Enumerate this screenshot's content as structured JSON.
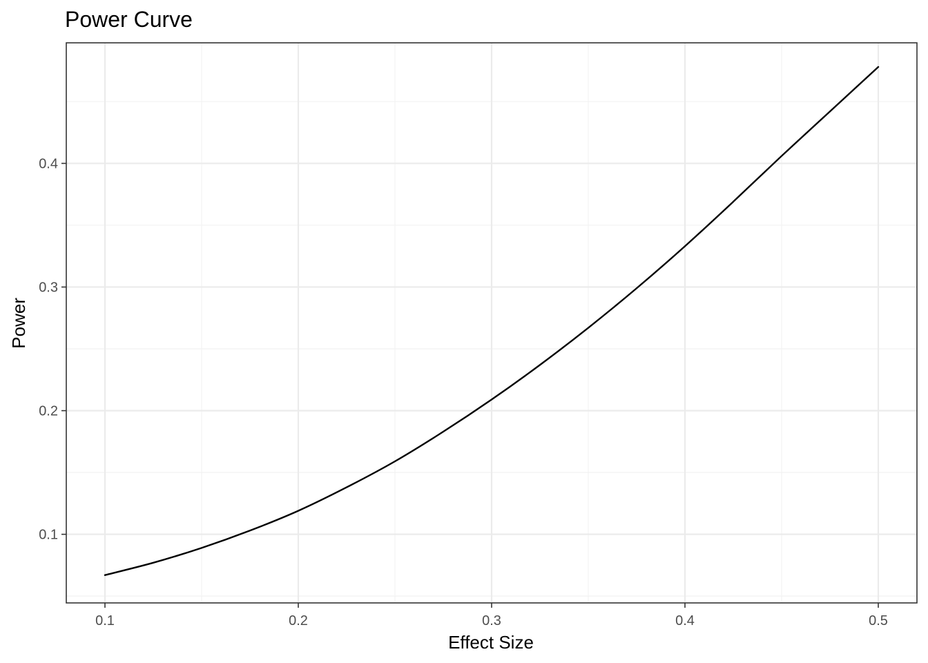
{
  "chart_data": {
    "type": "line",
    "title": "Power Curve",
    "xlabel": "Effect Size",
    "ylabel": "Power",
    "xlim": [
      0.08,
      0.52
    ],
    "ylim": [
      0.0445,
      0.4975
    ],
    "x_ticks": [
      0.1,
      0.2,
      0.3,
      0.4,
      0.5
    ],
    "x_tick_labels": [
      "0.1",
      "0.2",
      "0.3",
      "0.4",
      "0.5"
    ],
    "x_minor_ticks": [
      0.15,
      0.25,
      0.35,
      0.45
    ],
    "y_ticks": [
      0.1,
      0.2,
      0.3,
      0.4
    ],
    "y_tick_labels": [
      "0.1",
      "0.2",
      "0.3",
      "0.4"
    ],
    "y_minor_ticks": [
      0.05,
      0.15,
      0.25,
      0.35,
      0.45
    ],
    "grid": true,
    "series": [
      {
        "color": "#000000",
        "x": [
          0.1,
          0.125,
          0.15,
          0.175,
          0.2,
          0.225,
          0.25,
          0.275,
          0.3,
          0.325,
          0.35,
          0.375,
          0.4,
          0.425,
          0.45,
          0.475,
          0.5
        ],
        "y": [
          0.067,
          0.077,
          0.089,
          0.103,
          0.119,
          0.138,
          0.159,
          0.183,
          0.209,
          0.237,
          0.267,
          0.299,
          0.333,
          0.369,
          0.406,
          0.442,
          0.478
        ]
      }
    ]
  }
}
